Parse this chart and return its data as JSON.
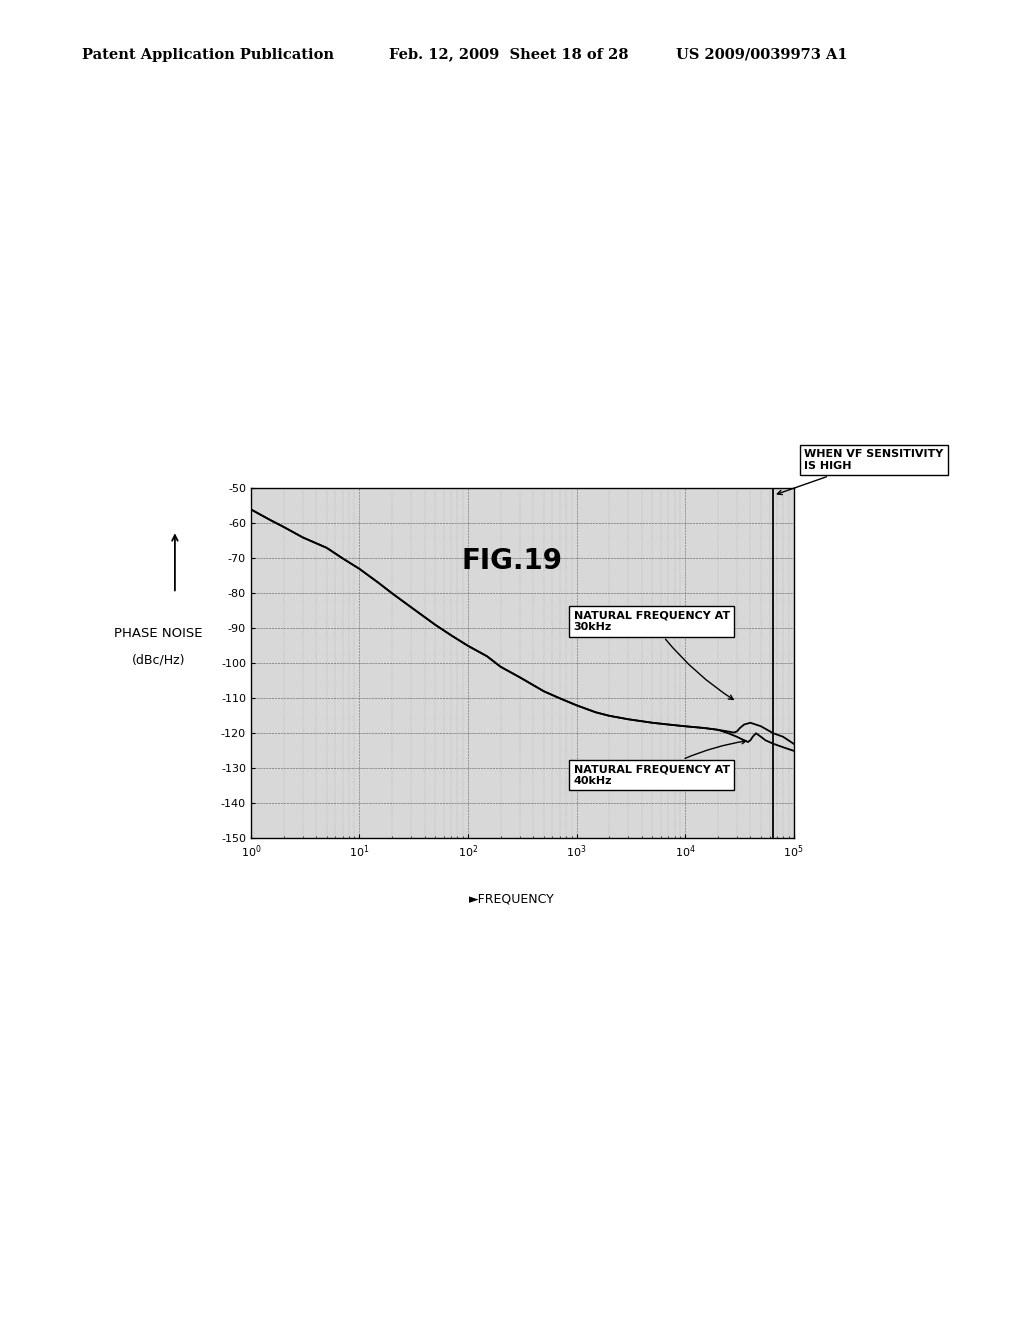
{
  "title": "FIG.19",
  "header_left": "Patent Application Publication",
  "header_center": "Feb. 12, 2009  Sheet 18 of 28",
  "header_right": "US 2009/0039973 A1",
  "xlabel": "►FREQUENCY",
  "ylabel_line1": "PHASE NOISE",
  "ylabel_line2": "(dBc/Hz)",
  "ylim": [
    -150,
    -50
  ],
  "yticks": [
    -150,
    -140,
    -130,
    -120,
    -110,
    -100,
    -90,
    -80,
    -70,
    -60,
    -50
  ],
  "bg_color": "#d8d8d8",
  "grid_major_color": "#444444",
  "grid_minor_color": "#888888",
  "annotation1_text": "NATURAL FREQUENCY AT\n30kHz",
  "annotation2_text": "NATURAL FREQUENCY AT\n40kHz",
  "annotation3_text": "WHEN VF SENSITIVITY\nIS HIGH",
  "curve1_x": [
    1,
    1.5,
    2,
    3,
    5,
    7,
    10,
    15,
    20,
    30,
    50,
    70,
    100,
    150,
    200,
    300,
    500,
    700,
    1000,
    1500,
    2000,
    3000,
    5000,
    7000,
    10000,
    15000,
    20000,
    25000,
    28000,
    30000,
    32000,
    35000,
    40000,
    50000,
    65000,
    80000,
    100000
  ],
  "curve1_y": [
    -56,
    -59,
    -61,
    -64,
    -67,
    -70,
    -73,
    -77,
    -80,
    -84,
    -89,
    -92,
    -95,
    -98,
    -101,
    -104,
    -108,
    -110,
    -112,
    -114,
    -115,
    -116,
    -117,
    -117.5,
    -118,
    -118.5,
    -119,
    -119.5,
    -119.8,
    -119.5,
    -118.5,
    -117.5,
    -117,
    -118,
    -120,
    -121,
    -123
  ],
  "curve2_x": [
    1,
    1.5,
    2,
    3,
    5,
    7,
    10,
    15,
    20,
    30,
    50,
    70,
    100,
    150,
    200,
    300,
    500,
    700,
    1000,
    1500,
    2000,
    3000,
    5000,
    7000,
    10000,
    15000,
    20000,
    25000,
    30000,
    35000,
    38000,
    40000,
    42000,
    45000,
    50000,
    55000,
    65000,
    80000,
    100000
  ],
  "curve2_y": [
    -56,
    -59,
    -61,
    -64,
    -67,
    -70,
    -73,
    -77,
    -80,
    -84,
    -89,
    -92,
    -95,
    -98,
    -101,
    -104,
    -108,
    -110,
    -112,
    -114,
    -115,
    -116,
    -117,
    -117.5,
    -118,
    -118.5,
    -119,
    -120,
    -121,
    -122,
    -122.5,
    -122,
    -121,
    -120,
    -121,
    -122,
    -123,
    -124,
    -125
  ],
  "vline_x": 65000
}
